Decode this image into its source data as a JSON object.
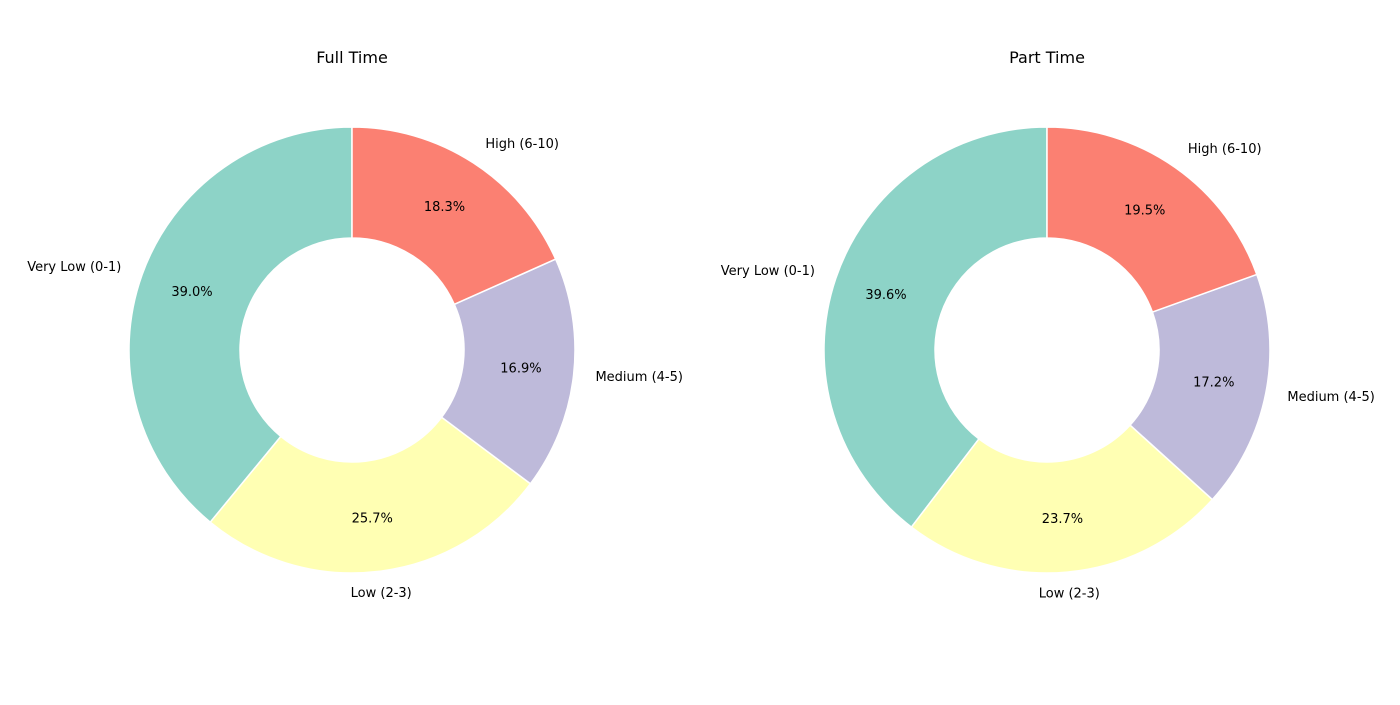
{
  "chart_data": [
    {
      "type": "pie",
      "subtype": "donut",
      "title": "Full Time",
      "categories": [
        "Very Low (0-1)",
        "Low (2-3)",
        "Medium (4-5)",
        "High (6-10)"
      ],
      "values": [
        39.0,
        25.7,
        16.9,
        18.3
      ],
      "value_labels": [
        "39.0%",
        "25.7%",
        "16.9%",
        "18.3%"
      ],
      "colors": [
        "#8dd3c7",
        "#ffffb3",
        "#bebada",
        "#fb8072"
      ],
      "start": "top",
      "direction": "counterclockwise",
      "legend": "none"
    },
    {
      "type": "pie",
      "subtype": "donut",
      "title": "Part Time",
      "categories": [
        "Very Low (0-1)",
        "Low (2-3)",
        "Medium (4-5)",
        "High (6-10)"
      ],
      "values": [
        39.6,
        23.7,
        17.2,
        19.5
      ],
      "value_labels": [
        "39.6%",
        "23.7%",
        "17.2%",
        "19.5%"
      ],
      "colors": [
        "#8dd3c7",
        "#ffffb3",
        "#bebada",
        "#fb8072"
      ],
      "start": "top",
      "direction": "counterclockwise",
      "legend": "none"
    }
  ]
}
